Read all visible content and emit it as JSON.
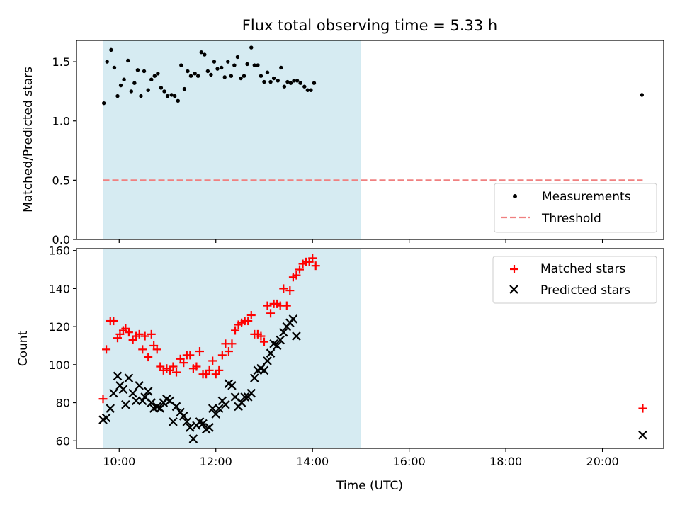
{
  "chart_data": [
    {
      "type": "scatter",
      "title": "Flux total observing time = 5.33 h",
      "xlabel": "",
      "ylabel": "Matched/Predicted stars",
      "xlim": [
        "09:07",
        "21:16"
      ],
      "ylim": [
        0,
        1.68
      ],
      "yticks": [
        "0.0",
        "0.5",
        "1.0",
        "1.5"
      ],
      "shaded_span": [
        "09:40",
        "15:00"
      ],
      "threshold": {
        "name": "Threshold",
        "value": 0.5,
        "x": [
          "09:40",
          "20:50"
        ],
        "color": "#f08080"
      },
      "legend": {
        "position": "lower right",
        "entries": [
          "Measurements",
          "Threshold"
        ]
      },
      "series": [
        {
          "name": "Measurements",
          "color": "#000000",
          "marker": "dot",
          "points": [
            [
              "09:41",
              1.15
            ],
            [
              "09:45",
              1.5
            ],
            [
              "09:50",
              1.6
            ],
            [
              "09:54",
              1.45
            ],
            [
              "09:58",
              1.21
            ],
            [
              "10:02",
              1.3
            ],
            [
              "10:06",
              1.35
            ],
            [
              "10:11",
              1.51
            ],
            [
              "10:15",
              1.25
            ],
            [
              "10:19",
              1.32
            ],
            [
              "10:23",
              1.43
            ],
            [
              "10:27",
              1.21
            ],
            [
              "10:31",
              1.42
            ],
            [
              "10:36",
              1.26
            ],
            [
              "10:40",
              1.35
            ],
            [
              "10:44",
              1.38
            ],
            [
              "10:48",
              1.4
            ],
            [
              "10:52",
              1.28
            ],
            [
              "10:56",
              1.25
            ],
            [
              "11:00",
              1.21
            ],
            [
              "11:05",
              1.22
            ],
            [
              "11:09",
              1.21
            ],
            [
              "11:13",
              1.17
            ],
            [
              "11:17",
              1.47
            ],
            [
              "11:21",
              1.27
            ],
            [
              "11:25",
              1.42
            ],
            [
              "11:29",
              1.38
            ],
            [
              "11:34",
              1.4
            ],
            [
              "11:38",
              1.38
            ],
            [
              "11:42",
              1.58
            ],
            [
              "11:46",
              1.56
            ],
            [
              "11:50",
              1.42
            ],
            [
              "11:54",
              1.39
            ],
            [
              "11:58",
              1.5
            ],
            [
              "12:02",
              1.44
            ],
            [
              "12:07",
              1.45
            ],
            [
              "12:11",
              1.37
            ],
            [
              "12:15",
              1.5
            ],
            [
              "12:19",
              1.38
            ],
            [
              "12:23",
              1.47
            ],
            [
              "12:27",
              1.54
            ],
            [
              "12:31",
              1.36
            ],
            [
              "12:35",
              1.38
            ],
            [
              "12:39",
              1.48
            ],
            [
              "12:44",
              1.62
            ],
            [
              "12:48",
              1.47
            ],
            [
              "12:52",
              1.47
            ],
            [
              "12:56",
              1.38
            ],
            [
              "13:00",
              1.33
            ],
            [
              "13:04",
              1.41
            ],
            [
              "13:08",
              1.33
            ],
            [
              "13:12",
              1.36
            ],
            [
              "13:17",
              1.34
            ],
            [
              "13:21",
              1.45
            ],
            [
              "13:25",
              1.29
            ],
            [
              "13:29",
              1.33
            ],
            [
              "13:33",
              1.32
            ],
            [
              "13:37",
              1.34
            ],
            [
              "13:41",
              1.34
            ],
            [
              "13:45",
              1.32
            ],
            [
              "13:50",
              1.29
            ],
            [
              "13:54",
              1.26
            ],
            [
              "13:58",
              1.26
            ],
            [
              "14:02",
              1.32
            ],
            [
              "20:49",
              1.22
            ]
          ]
        }
      ]
    },
    {
      "type": "scatter",
      "xlabel": "Time (UTC)",
      "ylabel": "Count",
      "xlim": [
        "09:07",
        "21:16"
      ],
      "ylim": [
        56,
        161
      ],
      "xticks": [
        "10:00",
        "12:00",
        "14:00",
        "16:00",
        "18:00",
        "20:00"
      ],
      "yticks": [
        "60",
        "80",
        "100",
        "120",
        "140",
        "160"
      ],
      "shaded_span": [
        "09:40",
        "15:00"
      ],
      "legend": {
        "position": "upper right",
        "entries": [
          "Matched stars",
          "Predicted stars"
        ]
      },
      "series": [
        {
          "name": "Matched stars",
          "color": "#ff0000",
          "marker": "plus",
          "points": [
            [
              "09:40",
              82
            ],
            [
              "09:44",
              108
            ],
            [
              "09:49",
              123
            ],
            [
              "09:53",
              123
            ],
            [
              "09:58",
              114
            ],
            [
              "10:01",
              116
            ],
            [
              "10:05",
              118
            ],
            [
              "10:08",
              119
            ],
            [
              "10:12",
              117
            ],
            [
              "10:17",
              113
            ],
            [
              "10:21",
              115
            ],
            [
              "10:25",
              116
            ],
            [
              "10:29",
              108
            ],
            [
              "10:32",
              115
            ],
            [
              "10:36",
              104
            ],
            [
              "10:40",
              116
            ],
            [
              "10:43",
              110
            ],
            [
              "10:47",
              108
            ],
            [
              "10:51",
              99
            ],
            [
              "10:55",
              97
            ],
            [
              "10:59",
              98
            ],
            [
              "11:03",
              97
            ],
            [
              "11:07",
              99
            ],
            [
              "11:11",
              96
            ],
            [
              "11:16",
              103
            ],
            [
              "11:20",
              101
            ],
            [
              "11:24",
              105
            ],
            [
              "11:28",
              105
            ],
            [
              "11:32",
              98
            ],
            [
              "11:36",
              99
            ],
            [
              "11:40",
              107
            ],
            [
              "11:44",
              95
            ],
            [
              "11:48",
              95
            ],
            [
              "11:52",
              97
            ],
            [
              "11:56",
              102
            ],
            [
              "12:00",
              95
            ],
            [
              "12:04",
              97
            ],
            [
              "12:08",
              105
            ],
            [
              "12:12",
              111
            ],
            [
              "12:16",
              107
            ],
            [
              "12:20",
              111
            ],
            [
              "12:24",
              118
            ],
            [
              "12:28",
              121
            ],
            [
              "12:32",
              122
            ],
            [
              "12:36",
              123
            ],
            [
              "12:40",
              123
            ],
            [
              "12:44",
              126
            ],
            [
              "12:48",
              116
            ],
            [
              "12:52",
              116
            ],
            [
              "12:56",
              115
            ],
            [
              "13:00",
              112
            ],
            [
              "13:04",
              131
            ],
            [
              "13:08",
              127
            ],
            [
              "13:12",
              132
            ],
            [
              "13:16",
              132
            ],
            [
              "13:20",
              131
            ],
            [
              "13:24",
              140
            ],
            [
              "13:28",
              131
            ],
            [
              "13:32",
              139
            ],
            [
              "13:36",
              146
            ],
            [
              "13:40",
              147
            ],
            [
              "13:44",
              150
            ],
            [
              "13:48",
              153
            ],
            [
              "13:52",
              154
            ],
            [
              "13:56",
              154
            ],
            [
              "14:00",
              156
            ],
            [
              "14:04",
              152
            ],
            [
              "20:50",
              77
            ]
          ]
        },
        {
          "name": "Predicted stars",
          "color": "#000000",
          "marker": "x",
          "points": [
            [
              "09:40",
              71
            ],
            [
              "09:44",
              72
            ],
            [
              "09:49",
              77
            ],
            [
              "09:53",
              85
            ],
            [
              "09:58",
              94
            ],
            [
              "10:01",
              89
            ],
            [
              "10:05",
              87
            ],
            [
              "10:08",
              79
            ],
            [
              "10:12",
              93
            ],
            [
              "10:17",
              85
            ],
            [
              "10:21",
              81
            ],
            [
              "10:25",
              89
            ],
            [
              "10:29",
              81
            ],
            [
              "10:32",
              83
            ],
            [
              "10:36",
              86
            ],
            [
              "10:40",
              80
            ],
            [
              "10:43",
              77
            ],
            [
              "10:47",
              78
            ],
            [
              "10:51",
              77
            ],
            [
              "10:55",
              80
            ],
            [
              "10:59",
              82
            ],
            [
              "11:03",
              81
            ],
            [
              "11:07",
              70
            ],
            [
              "11:11",
              78
            ],
            [
              "11:16",
              75
            ],
            [
              "11:20",
              73
            ],
            [
              "11:24",
              70
            ],
            [
              "11:28",
              67
            ],
            [
              "11:32",
              61
            ],
            [
              "11:36",
              68
            ],
            [
              "11:40",
              70
            ],
            [
              "11:44",
              69
            ],
            [
              "11:48",
              66
            ],
            [
              "11:52",
              67
            ],
            [
              "11:56",
              77
            ],
            [
              "12:00",
              74
            ],
            [
              "12:04",
              77
            ],
            [
              "12:08",
              81
            ],
            [
              "12:12",
              79
            ],
            [
              "12:16",
              90
            ],
            [
              "12:20",
              89
            ],
            [
              "12:24",
              83
            ],
            [
              "12:28",
              78
            ],
            [
              "12:32",
              80
            ],
            [
              "12:36",
              83
            ],
            [
              "12:40",
              83
            ],
            [
              "12:44",
              85
            ],
            [
              "12:48",
              93
            ],
            [
              "12:52",
              97
            ],
            [
              "12:56",
              98
            ],
            [
              "13:00",
              97
            ],
            [
              "13:04",
              102
            ],
            [
              "13:08",
              106
            ],
            [
              "13:12",
              111
            ],
            [
              "13:16",
              110
            ],
            [
              "13:20",
              113
            ],
            [
              "13:24",
              117
            ],
            [
              "13:28",
              120
            ],
            [
              "13:32",
              122
            ],
            [
              "13:36",
              124
            ],
            [
              "13:40",
              115
            ],
            [
              "20:50",
              63
            ]
          ]
        }
      ]
    }
  ]
}
